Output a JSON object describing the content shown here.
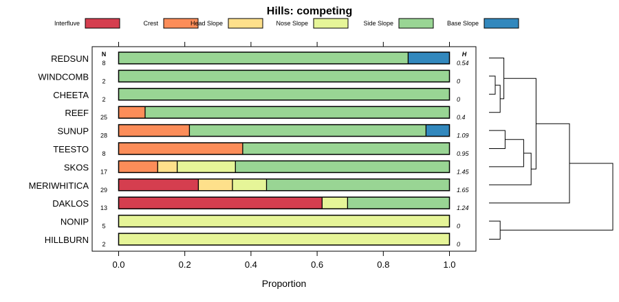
{
  "chart_data": {
    "type": "bar",
    "orientation": "horizontal",
    "stacked": true,
    "title": "Hills: competing",
    "xlabel": "Proportion",
    "ylabel": "",
    "xlim": [
      -0.08,
      1.08
    ],
    "xticks": [
      "0.0",
      "0.2",
      "0.4",
      "0.6",
      "0.8",
      "1.0"
    ],
    "n_header": "N",
    "h_header": "H",
    "legend": {
      "position": "top",
      "entries": [
        {
          "name": "Interfluve",
          "color": "#d53e4f"
        },
        {
          "name": "Crest",
          "color": "#fc8d59"
        },
        {
          "name": "Head Slope",
          "color": "#fee08b"
        },
        {
          "name": "Nose Slope",
          "color": "#e6f598"
        },
        {
          "name": "Side Slope",
          "color": "#99d594"
        },
        {
          "name": "Base Slope",
          "color": "#3288bd"
        }
      ]
    },
    "categories": [
      "REDSUN",
      "WINDCOMB",
      "CHEETA",
      "REEF",
      "SUNUP",
      "TEESTO",
      "SKOS",
      "MERIWHITICA",
      "DAKLOS",
      "NONIP",
      "HILLBURN"
    ],
    "n": [
      "8",
      "2",
      "2",
      "25",
      "28",
      "8",
      "17",
      "29",
      "13",
      "5",
      "2"
    ],
    "h": [
      "0.54",
      "0",
      "0",
      "0.4",
      "1.09",
      "0.95",
      "1.45",
      "1.65",
      "1.24",
      "0",
      "0"
    ],
    "series": [
      {
        "name": "Interfluve",
        "values": [
          0,
          0,
          0,
          0,
          0,
          0,
          0,
          0.241,
          0.615,
          0,
          0
        ]
      },
      {
        "name": "Crest",
        "values": [
          0,
          0,
          0,
          0.08,
          0.214,
          0.375,
          0.118,
          0,
          0,
          0,
          0
        ]
      },
      {
        "name": "Head Slope",
        "values": [
          0,
          0,
          0,
          0,
          0,
          0,
          0.059,
          0.103,
          0,
          0,
          0
        ]
      },
      {
        "name": "Nose Slope",
        "values": [
          0,
          0,
          0,
          0,
          0,
          0,
          0.176,
          0.103,
          0.077,
          1,
          1
        ]
      },
      {
        "name": "Side Slope",
        "values": [
          0.875,
          1,
          1,
          0.92,
          0.715,
          0.625,
          0.647,
          0.553,
          0.308,
          0,
          0
        ]
      },
      {
        "name": "Base Slope",
        "values": [
          0.125,
          0,
          0,
          0,
          0.071,
          0,
          0,
          0,
          0,
          0,
          0
        ]
      }
    ],
    "dendrogram": {
      "leaf_order": [
        "REDSUN",
        "WINDCOMB",
        "CHEETA",
        "REEF",
        "SUNUP",
        "TEESTO",
        "SKOS",
        "MERIWHITICA",
        "DAKLOS",
        "NONIP",
        "HILLBURN"
      ],
      "merges": [
        {
          "a": "WINDCOMB",
          "b": "CHEETA",
          "height": 0.05
        },
        {
          "a": "#0",
          "b": "REEF",
          "height": 0.09
        },
        {
          "a": "REDSUN",
          "b": "#1",
          "height": 0.12
        },
        {
          "a": "SUNUP",
          "b": "TEESTO",
          "height": 0.13
        },
        {
          "a": "#3",
          "b": "SKOS",
          "height": 0.28
        },
        {
          "a": "#4",
          "b": "MERIWHITICA",
          "height": 0.34
        },
        {
          "a": "#2",
          "b": "#5",
          "height": 0.38
        },
        {
          "a": "#6",
          "b": "DAKLOS",
          "height": 0.65
        },
        {
          "a": "NONIP",
          "b": "HILLBURN",
          "height": 0.09
        },
        {
          "a": "#7",
          "b": "#8",
          "height": 1.0
        }
      ]
    }
  }
}
